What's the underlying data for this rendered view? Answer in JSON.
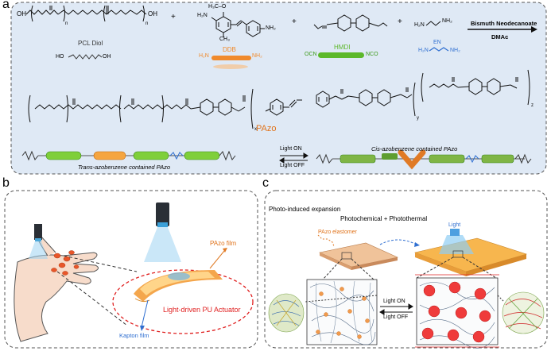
{
  "panel_a": {
    "letter": "a",
    "reactants": {
      "pcl_diol": {
        "name": "PCL Diol",
        "oh_left": "OH",
        "oh_right": "OH",
        "n1": "n",
        "n2": "n",
        "short_left": "HO",
        "short_right": "OH"
      },
      "ddb": {
        "name": "DDB",
        "h3co": "H₃C–O",
        "h2n": "H₂N",
        "nh2": "NH₂",
        "ch3": "CH₃",
        "short_left": "H₂N",
        "short_right": "NH₂"
      },
      "hmdi": {
        "name": "HMDI",
        "ocn": "OCN",
        "nco": "NCO"
      },
      "en": {
        "name": "EN",
        "h2n": "H₂N",
        "nh2": "NH₂"
      }
    },
    "plus": "+",
    "catalyst": "Bismuth Neodecanoate",
    "solvent": "DMAc",
    "product_name": "PAzo",
    "subscripts": {
      "x": "x",
      "y": "y",
      "z": "z",
      "n": "n"
    },
    "state_trans": "Trans-azobenzene contained PAzo",
    "state_cis": "Cis-azobenzene contained PAzo",
    "light_on": "Light ON",
    "light_off": "Light OFF"
  },
  "panel_b": {
    "letter": "b",
    "pazo_film": "PAzo film",
    "actuator_label": "Light-driven PU Actuator",
    "kapton_film": "Kapton film"
  },
  "panel_c": {
    "letter": "c",
    "title": "Photo-induced expansion",
    "subtitle": "Photochemical + Photothermal",
    "light": "Light",
    "elastomer": "PAzo elastomer",
    "light_on": "Light ON",
    "light_off": "Light OFF"
  },
  "colors": {
    "panel_a_bg": "#dfe9f5",
    "border": "#555555",
    "ddb_orange": "#f08a2c",
    "hmdi_green": "#5cb82a",
    "en_blue": "#2f6fd1",
    "pazo_orange": "#e0731b",
    "actuator_red": "#e02020"
  }
}
